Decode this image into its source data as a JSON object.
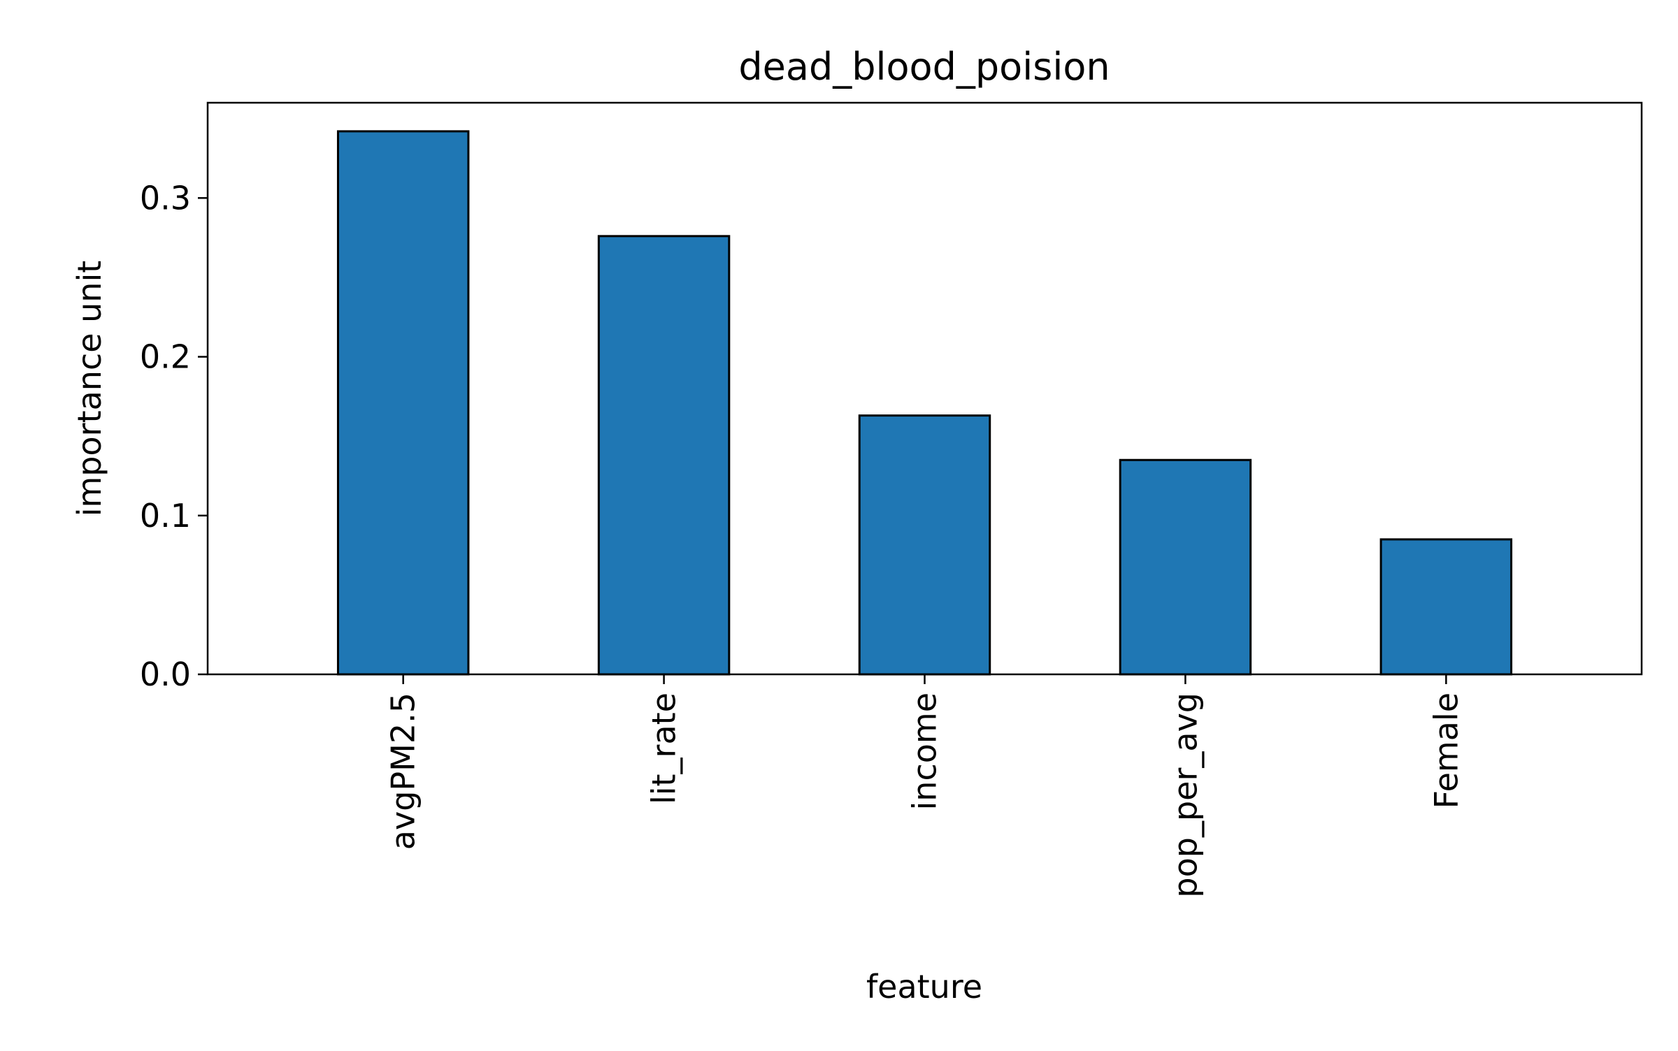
{
  "chart_data": {
    "type": "bar",
    "title": "dead_blood_poision",
    "xlabel": "feature",
    "ylabel": "importance unit",
    "categories": [
      "avgPM2.5",
      "lit_rate",
      "income",
      "pop_per_avg",
      "Female"
    ],
    "values": [
      0.342,
      0.276,
      0.163,
      0.135,
      0.085
    ],
    "ylim": [
      0,
      0.36
    ],
    "yticks": [
      0.0,
      0.1,
      0.2,
      0.3
    ],
    "ytick_labels": [
      "0.0",
      "0.1",
      "0.2",
      "0.3"
    ],
    "grid": false,
    "legend": "none",
    "colors": {
      "bar_fill": "#1f77b4",
      "bar_edge": "#000000",
      "axes": "#000000",
      "background": "#ffffff"
    }
  }
}
